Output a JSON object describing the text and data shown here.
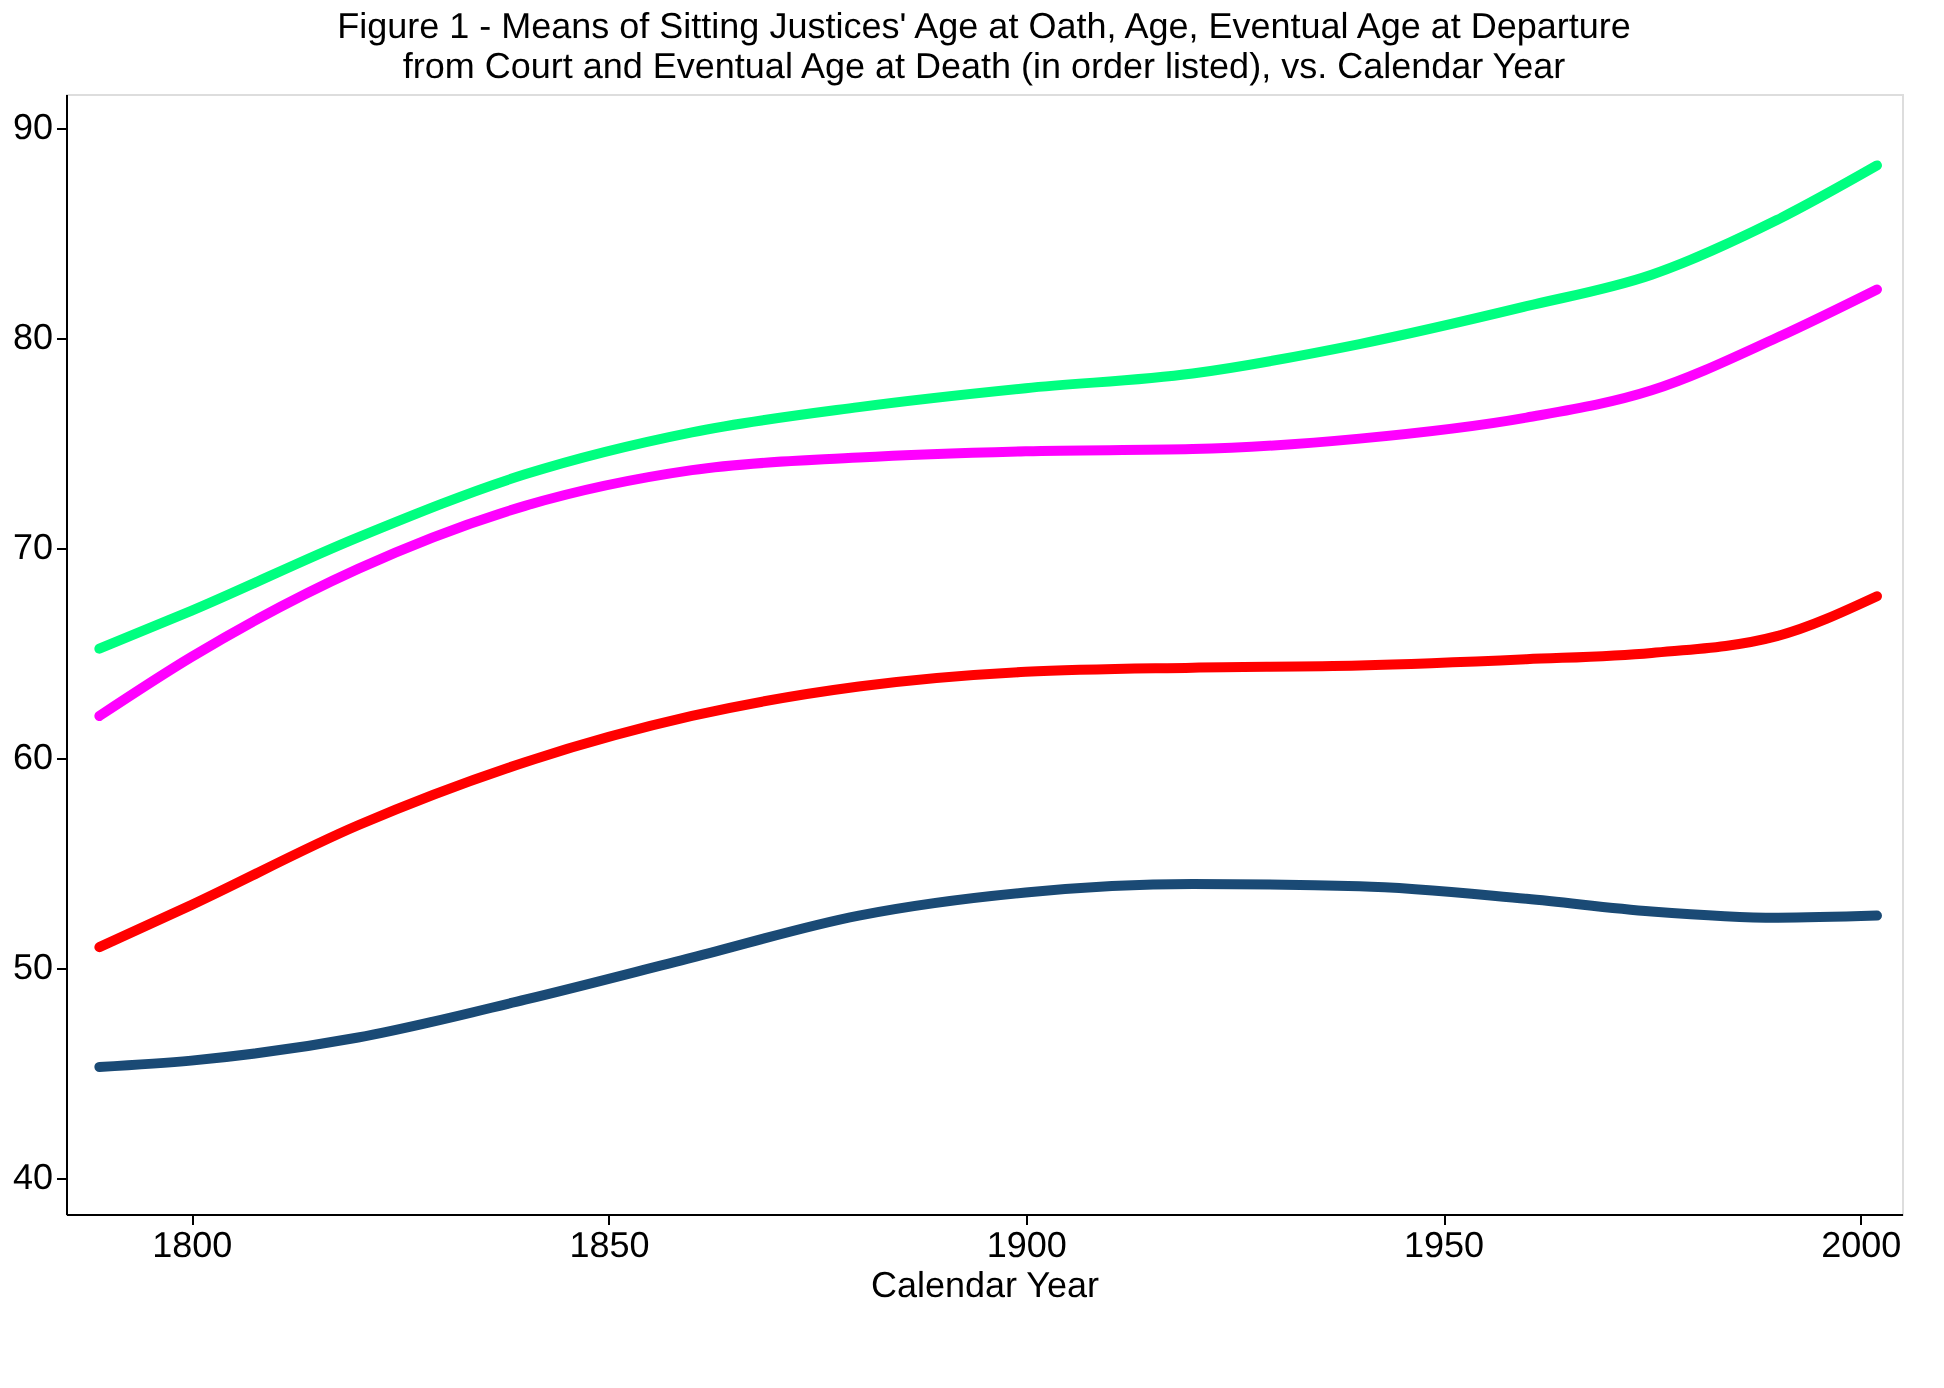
{
  "chart_data": {
    "type": "line",
    "title": [
      "Figure 1 - Means of  Sitting Justices' Age at Oath, Age, Eventual Age at Departure",
      "from Court and Eventual  Age at Death (in order listed),  vs. Calendar Year"
    ],
    "xlabel": "Calendar Year",
    "x": [
      1789,
      1800,
      1820,
      1840,
      1860,
      1880,
      1900,
      1920,
      1940,
      1960,
      1975,
      1990,
      2002
    ],
    "series": [
      {
        "color": "#1a4a75",
        "values": [
          45.3,
          45.6,
          46.7,
          48.5,
          50.5,
          52.5,
          53.6,
          54.0,
          53.9,
          53.3,
          52.7,
          52.4,
          52.5
        ]
      },
      {
        "color": "#ff0000",
        "values": [
          51.0,
          53.0,
          56.8,
          59.8,
          62.0,
          63.4,
          64.1,
          64.3,
          64.4,
          64.7,
          65.0,
          65.8,
          67.7
        ]
      },
      {
        "color": "#ff00ff",
        "values": [
          62.0,
          64.8,
          69.0,
          72.0,
          73.7,
          74.3,
          74.6,
          74.7,
          75.2,
          76.2,
          77.5,
          80.0,
          82.3
        ]
      },
      {
        "color": "#00ff80",
        "values": [
          65.2,
          67.0,
          70.5,
          73.5,
          75.5,
          76.7,
          77.6,
          78.3,
          79.7,
          81.5,
          83.0,
          85.6,
          88.2
        ]
      }
    ],
    "xlim": [
      1785,
      2005
    ],
    "xticks": [
      1800,
      1850,
      1900,
      1950,
      2000
    ],
    "ylim": [
      38.3,
      91.6
    ],
    "yticks": [
      40,
      50,
      60,
      70,
      80,
      90
    ],
    "grid": false,
    "legend": false,
    "marker": "none",
    "line_style": "solid"
  }
}
